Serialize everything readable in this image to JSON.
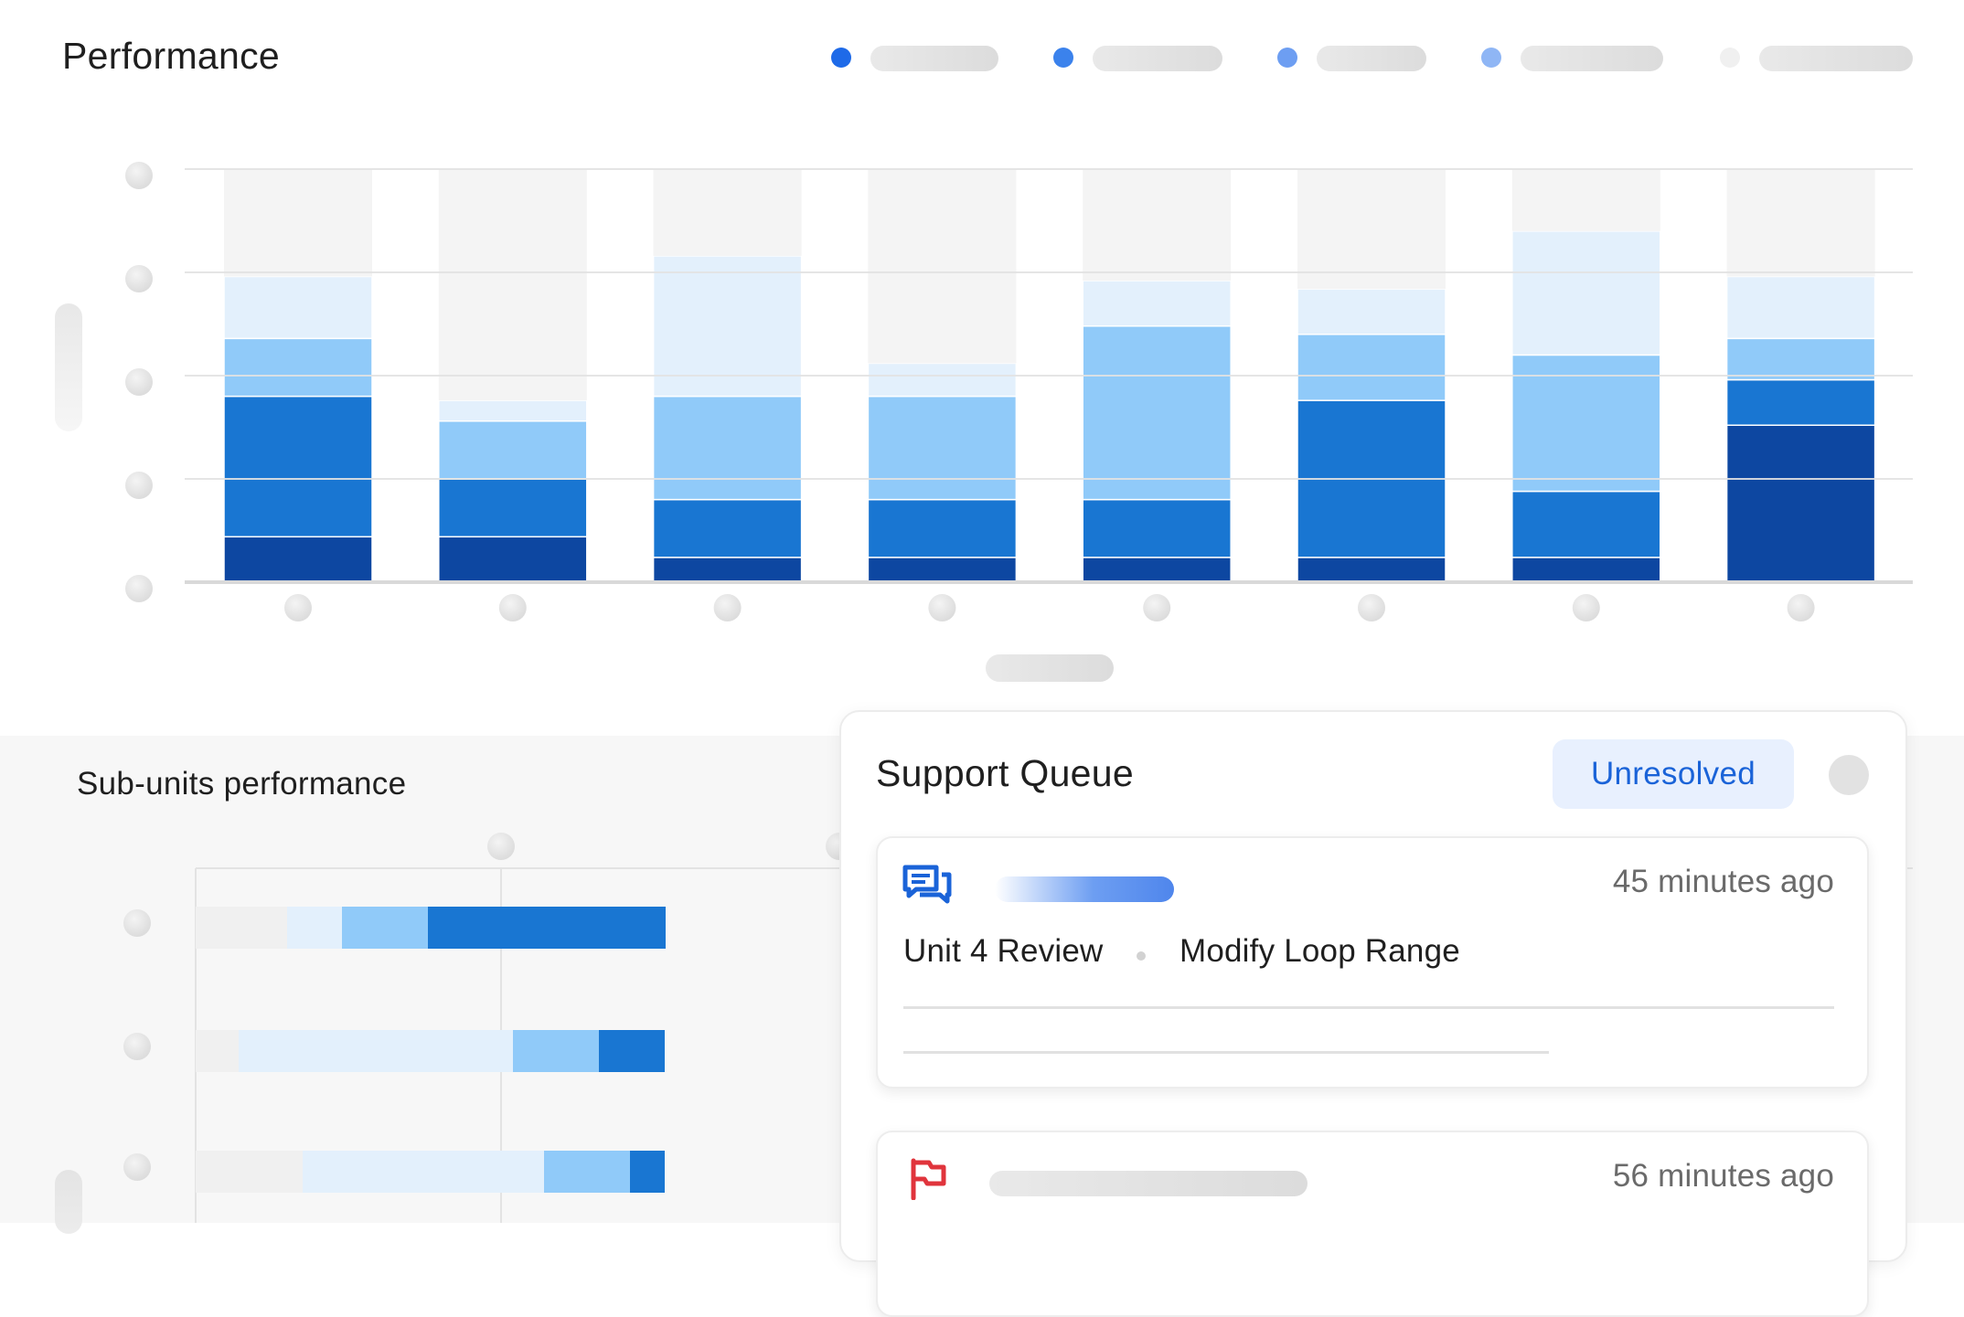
{
  "performance": {
    "title": "Performance",
    "legend_colors": [
      "#1e6ae8",
      "#3b82ec",
      "#6d9ef2",
      "#8fb6f5",
      "#f0f0f0"
    ]
  },
  "chart_data": [
    {
      "type": "bar",
      "stacked": true,
      "orientation": "vertical",
      "title": "",
      "xlabel": "",
      "ylabel": "",
      "categories": [
        "",
        "",
        "",
        "",
        "",
        "",
        "",
        ""
      ],
      "ylim": [
        0,
        100
      ],
      "grid": true,
      "legend": "top-right",
      "series": [
        {
          "color": "#0d47a1",
          "values": [
            11,
            11,
            6,
            6,
            6,
            6,
            6,
            38
          ]
        },
        {
          "color": "#1976d2",
          "values": [
            34,
            14,
            14,
            14,
            14,
            38,
            16,
            11
          ]
        },
        {
          "color": "#90caf9",
          "values": [
            14,
            14,
            25,
            25,
            42,
            16,
            33,
            10
          ]
        },
        {
          "color": "#e3f0fc",
          "values": [
            15,
            5,
            34,
            8,
            11,
            11,
            30,
            15
          ]
        },
        {
          "color": "#f4f4f4",
          "values": [
            26,
            56,
            21,
            47,
            27,
            29,
            15,
            26
          ]
        }
      ]
    },
    {
      "type": "bar",
      "stacked": true,
      "orientation": "horizontal",
      "title": "Sub-units performance",
      "categories": [
        "",
        "",
        ""
      ],
      "grid": true,
      "series": [
        {
          "color": "#f0f0f0",
          "values": [
            100,
            47,
            117
          ]
        },
        {
          "color": "#e3f0fc",
          "values": [
            60,
            300,
            264
          ]
        },
        {
          "color": "#90caf9",
          "values": [
            94,
            94,
            94
          ]
        },
        {
          "color": "#1976d2",
          "values": [
            260,
            72,
            38
          ]
        }
      ]
    }
  ],
  "support_queue": {
    "title": "Support Queue",
    "filter_label": "Unresolved",
    "tickets": [
      {
        "icon": "chat-icon",
        "time": "45 minutes ago",
        "unit": "Unit 4 Review",
        "task": "Modify Loop Range"
      },
      {
        "icon": "flag-icon",
        "time": "56 minutes ago"
      }
    ],
    "colors": {
      "accent": "#1a63d8",
      "flag": "#e0343c"
    }
  }
}
